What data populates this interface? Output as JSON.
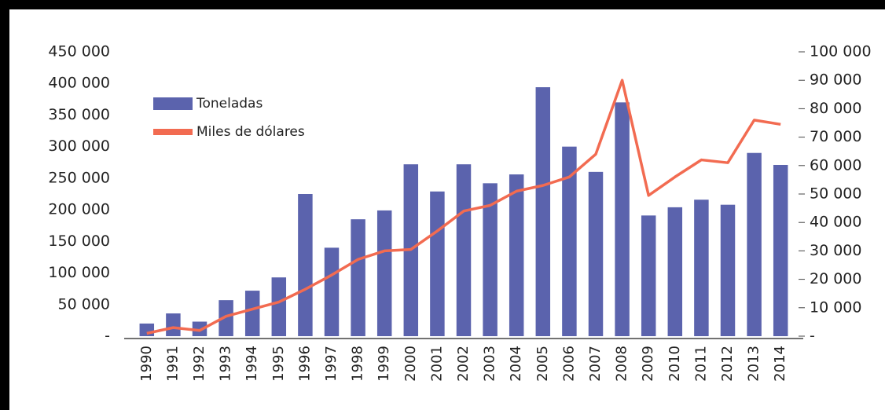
{
  "chart_data": {
    "type": "bar_line",
    "categories": [
      "1990",
      "1991",
      "1992",
      "1993",
      "1994",
      "1995",
      "1996",
      "1997",
      "1998",
      "1999",
      "2000",
      "2001",
      "2002",
      "2003",
      "2004",
      "2005",
      "2006",
      "2007",
      "2008",
      "2009",
      "2010",
      "2011",
      "2012",
      "2013",
      "2014"
    ],
    "series": [
      {
        "name": "Toneladas",
        "type": "bar",
        "color": "#5b63ad",
        "values": [
          20000,
          36000,
          23000,
          57000,
          72000,
          93000,
          225000,
          140000,
          185000,
          199000,
          272000,
          229000,
          272000,
          242000,
          256000,
          394000,
          300000,
          260000,
          370000,
          191000,
          204000,
          216000,
          208000,
          290000,
          271000
        ]
      },
      {
        "name": "Miles de dólares",
        "type": "line",
        "axis": "y2",
        "color": "#f26b51",
        "values": [
          1000,
          3000,
          2000,
          7000,
          9500,
          12000,
          16500,
          21500,
          27000,
          30000,
          30500,
          37000,
          44000,
          46000,
          51000,
          53000,
          56000,
          64000,
          90000,
          49500,
          56000,
          62000,
          61000,
          76000,
          74500
        ]
      }
    ],
    "ylim": [
      0,
      450000
    ],
    "yticks": [
      {
        "value": 0,
        "label": "-"
      },
      {
        "value": 50000,
        "label": "50 000"
      },
      {
        "value": 100000,
        "label": "100 000"
      },
      {
        "value": 150000,
        "label": "150 000"
      },
      {
        "value": 200000,
        "label": "200 000"
      },
      {
        "value": 250000,
        "label": "250 000"
      },
      {
        "value": 300000,
        "label": "300 000"
      },
      {
        "value": 350000,
        "label": "350 000"
      },
      {
        "value": 400000,
        "label": "400 000"
      },
      {
        "value": 450000,
        "label": "450 000"
      }
    ],
    "y2lim": [
      0,
      100000
    ],
    "y2ticks": [
      {
        "value": 0,
        "label": "-"
      },
      {
        "value": 10000,
        "label": "10 000"
      },
      {
        "value": 20000,
        "label": "20 000"
      },
      {
        "value": 30000,
        "label": "30 000"
      },
      {
        "value": 40000,
        "label": "40 000"
      },
      {
        "value": 50000,
        "label": "50 000"
      },
      {
        "value": 60000,
        "label": "60 000"
      },
      {
        "value": 70000,
        "label": "70 000"
      },
      {
        "value": 80000,
        "label": "80 000"
      },
      {
        "value": 90000,
        "label": "90 000"
      },
      {
        "value": 100000,
        "label": "100 000"
      }
    ],
    "legend": "upper left"
  }
}
